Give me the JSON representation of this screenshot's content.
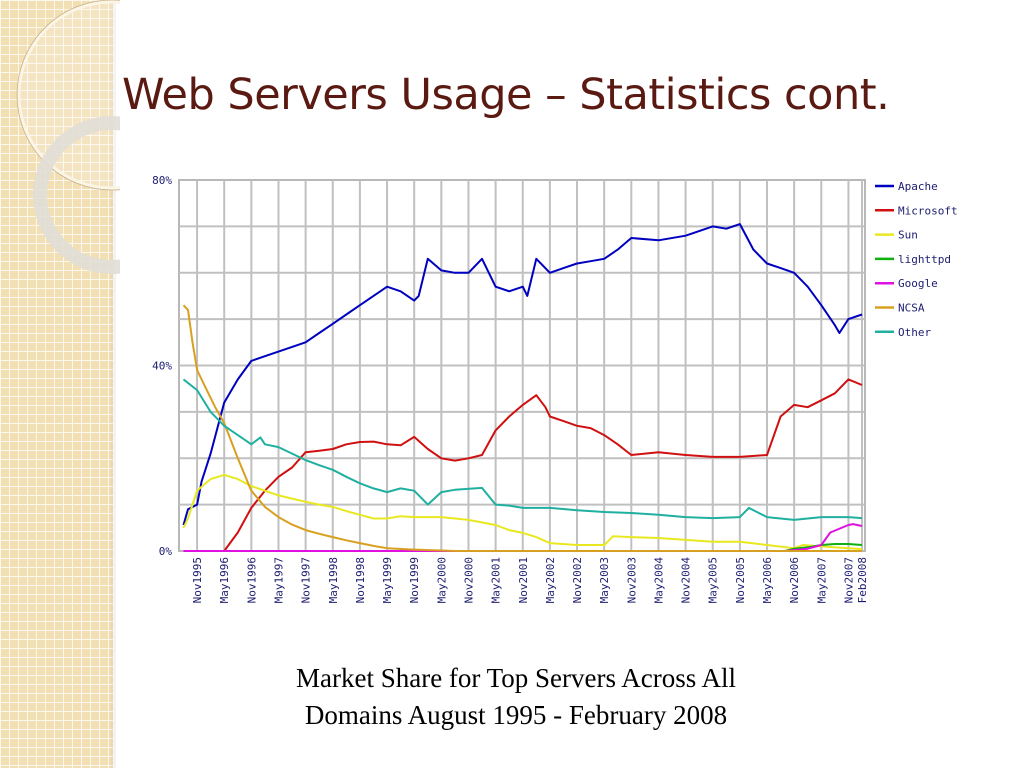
{
  "title": "Web Servers Usage – Statistics cont.",
  "caption": [
    "Market Share for Top Servers Across All",
    "Domains August 1995 - February 2008"
  ],
  "chart_data": {
    "type": "line",
    "title": "Market Share for Top Servers Across All Domains August 1995 - February 2008",
    "xlabel": "",
    "ylabel": "",
    "x_unit": "months since Aug1995",
    "xlim": [
      0,
      150
    ],
    "ylim": [
      0,
      80
    ],
    "yticks": [
      {
        "v": 0,
        "label": "0%"
      },
      {
        "v": 40,
        "label": "40%"
      },
      {
        "v": 80,
        "label": "80%"
      }
    ],
    "xticks": [
      {
        "m": 3,
        "label": "Nov1995"
      },
      {
        "m": 9,
        "label": "May1996"
      },
      {
        "m": 15,
        "label": "Nov1996"
      },
      {
        "m": 21,
        "label": "May1997"
      },
      {
        "m": 27,
        "label": "Nov1997"
      },
      {
        "m": 33,
        "label": "May1998"
      },
      {
        "m": 39,
        "label": "Nov1998"
      },
      {
        "m": 45,
        "label": "May1999"
      },
      {
        "m": 51,
        "label": "Nov1999"
      },
      {
        "m": 57,
        "label": "May2000"
      },
      {
        "m": 63,
        "label": "Nov2000"
      },
      {
        "m": 69,
        "label": "May2001"
      },
      {
        "m": 75,
        "label": "Nov2001"
      },
      {
        "m": 81,
        "label": "May2002"
      },
      {
        "m": 87,
        "label": "Nov2002"
      },
      {
        "m": 93,
        "label": "May2003"
      },
      {
        "m": 99,
        "label": "Nov2003"
      },
      {
        "m": 105,
        "label": "May2004"
      },
      {
        "m": 111,
        "label": "Nov2004"
      },
      {
        "m": 117,
        "label": "May2005"
      },
      {
        "m": 123,
        "label": "Nov2005"
      },
      {
        "m": 129,
        "label": "May2006"
      },
      {
        "m": 135,
        "label": "Nov2006"
      },
      {
        "m": 141,
        "label": "May2007"
      },
      {
        "m": 147,
        "label": "Nov2007"
      },
      {
        "m": 150,
        "label": "Feb2008"
      }
    ],
    "grid": true,
    "legend_position": "right",
    "series": [
      {
        "name": "Apache",
        "color": "#0000c0",
        "points": [
          [
            0,
            5.6
          ],
          [
            1,
            9
          ],
          [
            3,
            10
          ],
          [
            4,
            15
          ],
          [
            6,
            21
          ],
          [
            9,
            32
          ],
          [
            12,
            37
          ],
          [
            15,
            41
          ],
          [
            18,
            42
          ],
          [
            21,
            43
          ],
          [
            24,
            44
          ],
          [
            27,
            45
          ],
          [
            30,
            47
          ],
          [
            33,
            49
          ],
          [
            36,
            51
          ],
          [
            39,
            53
          ],
          [
            42,
            55
          ],
          [
            45,
            57
          ],
          [
            48,
            56
          ],
          [
            51,
            54
          ],
          [
            52,
            55
          ],
          [
            54,
            63
          ],
          [
            57,
            60.5
          ],
          [
            60,
            60
          ],
          [
            63,
            60
          ],
          [
            66,
            63
          ],
          [
            69,
            57
          ],
          [
            72,
            56
          ],
          [
            75,
            57
          ],
          [
            76,
            55
          ],
          [
            78,
            63
          ],
          [
            81,
            60
          ],
          [
            84,
            61
          ],
          [
            87,
            62
          ],
          [
            90,
            62.5
          ],
          [
            93,
            63
          ],
          [
            96,
            65
          ],
          [
            99,
            67.5
          ],
          [
            105,
            67
          ],
          [
            111,
            68
          ],
          [
            117,
            70
          ],
          [
            120,
            69.5
          ],
          [
            123,
            70.5
          ],
          [
            126,
            65
          ],
          [
            129,
            62
          ],
          [
            132,
            61
          ],
          [
            135,
            60
          ],
          [
            138,
            57
          ],
          [
            141,
            53
          ],
          [
            144,
            48.7
          ],
          [
            145,
            47
          ],
          [
            147,
            50
          ],
          [
            150,
            51
          ]
        ]
      },
      {
        "name": "Microsoft",
        "color": "#d01010",
        "points": [
          [
            0,
            0
          ],
          [
            9,
            0
          ],
          [
            12,
            4
          ],
          [
            15,
            9.3
          ],
          [
            18,
            13
          ],
          [
            21,
            16
          ],
          [
            24,
            18
          ],
          [
            27,
            21.3
          ],
          [
            30,
            21.6
          ],
          [
            33,
            22
          ],
          [
            36,
            23
          ],
          [
            39,
            23.5
          ],
          [
            42,
            23.6
          ],
          [
            45,
            23
          ],
          [
            48,
            22.8
          ],
          [
            51,
            24.6
          ],
          [
            54,
            22
          ],
          [
            57,
            20
          ],
          [
            60,
            19.5
          ],
          [
            63,
            20
          ],
          [
            66,
            20.7
          ],
          [
            69,
            26
          ],
          [
            72,
            29
          ],
          [
            75,
            31.5
          ],
          [
            78,
            33.6
          ],
          [
            80,
            31
          ],
          [
            81,
            29
          ],
          [
            84,
            28
          ],
          [
            87,
            27
          ],
          [
            90,
            26.5
          ],
          [
            93,
            25
          ],
          [
            96,
            23
          ],
          [
            99,
            20.7
          ],
          [
            105,
            21.3
          ],
          [
            111,
            20.7
          ],
          [
            117,
            20.3
          ],
          [
            123,
            20.3
          ],
          [
            129,
            20.7
          ],
          [
            132,
            29
          ],
          [
            135,
            31.5
          ],
          [
            138,
            31
          ],
          [
            141,
            32.5
          ],
          [
            144,
            34
          ],
          [
            147,
            37
          ],
          [
            150,
            35.8
          ]
        ]
      },
      {
        "name": "Sun",
        "color": "#e8e820",
        "points": [
          [
            0,
            5
          ],
          [
            1,
            7
          ],
          [
            3,
            13
          ],
          [
            6,
            15.5
          ],
          [
            9,
            16.4
          ],
          [
            12,
            15.5
          ],
          [
            15,
            14
          ],
          [
            18,
            13
          ],
          [
            21,
            12
          ],
          [
            24,
            11.3
          ],
          [
            27,
            10.6
          ],
          [
            30,
            10
          ],
          [
            33,
            9.5
          ],
          [
            36,
            8.6
          ],
          [
            39,
            7.8
          ],
          [
            42,
            7
          ],
          [
            45,
            7
          ],
          [
            48,
            7.5
          ],
          [
            51,
            7.3
          ],
          [
            57,
            7.3
          ],
          [
            63,
            6.7
          ],
          [
            69,
            5.6
          ],
          [
            72,
            4.5
          ],
          [
            75,
            3.9
          ],
          [
            78,
            3
          ],
          [
            81,
            1.7
          ],
          [
            87,
            1.3
          ],
          [
            93,
            1.3
          ],
          [
            95,
            3.2
          ],
          [
            99,
            3
          ],
          [
            105,
            2.8
          ],
          [
            111,
            2.4
          ],
          [
            117,
            2
          ],
          [
            123,
            2
          ],
          [
            129,
            1.3
          ],
          [
            135,
            0.6
          ],
          [
            137,
            1.3
          ],
          [
            141,
            1
          ],
          [
            147,
            0.6
          ],
          [
            150,
            0.4
          ]
        ]
      },
      {
        "name": "lighttpd",
        "color": "#10b010",
        "points": [
          [
            0,
            0
          ],
          [
            133,
            0
          ],
          [
            135,
            0.5
          ],
          [
            138,
            0.8
          ],
          [
            141,
            1.3
          ],
          [
            144,
            1.5
          ],
          [
            147,
            1.5
          ],
          [
            150,
            1.3
          ]
        ]
      },
      {
        "name": "Google",
        "color": "#e010e0",
        "points": [
          [
            0,
            0
          ],
          [
            133,
            0
          ],
          [
            138,
            0.5
          ],
          [
            141,
            1.3
          ],
          [
            143,
            4
          ],
          [
            147,
            5.6
          ],
          [
            148,
            5.8
          ],
          [
            150,
            5.4
          ]
        ]
      },
      {
        "name": "NCSA",
        "color": "#d8a020",
        "points": [
          [
            0,
            53
          ],
          [
            1,
            52
          ],
          [
            2,
            45
          ],
          [
            3,
            39
          ],
          [
            5,
            35
          ],
          [
            7,
            31
          ],
          [
            9,
            27.6
          ],
          [
            12,
            20
          ],
          [
            15,
            13
          ],
          [
            18,
            9.5
          ],
          [
            21,
            7.3
          ],
          [
            24,
            5.7
          ],
          [
            27,
            4.5
          ],
          [
            30,
            3.7
          ],
          [
            33,
            3
          ],
          [
            36,
            2.3
          ],
          [
            39,
            1.7
          ],
          [
            42,
            1.1
          ],
          [
            45,
            0.6
          ],
          [
            51,
            0.3
          ],
          [
            57,
            0.1
          ],
          [
            60,
            0
          ],
          [
            150,
            0
          ]
        ]
      },
      {
        "name": "Other",
        "color": "#20b0a0",
        "points": [
          [
            0,
            37
          ],
          [
            3,
            34.7
          ],
          [
            6,
            30
          ],
          [
            9,
            27
          ],
          [
            12,
            25
          ],
          [
            15,
            23
          ],
          [
            17,
            24.5
          ],
          [
            18,
            23
          ],
          [
            21,
            22.4
          ],
          [
            24,
            21
          ],
          [
            27,
            19.6
          ],
          [
            30,
            18.5
          ],
          [
            33,
            17.5
          ],
          [
            36,
            16
          ],
          [
            39,
            14.6
          ],
          [
            42,
            13.5
          ],
          [
            45,
            12.7
          ],
          [
            48,
            13.5
          ],
          [
            51,
            13
          ],
          [
            54,
            10
          ],
          [
            57,
            12.7
          ],
          [
            60,
            13.2
          ],
          [
            66,
            13.6
          ],
          [
            69,
            10
          ],
          [
            72,
            9.8
          ],
          [
            75,
            9.3
          ],
          [
            81,
            9.3
          ],
          [
            87,
            8.8
          ],
          [
            93,
            8.4
          ],
          [
            99,
            8.2
          ],
          [
            105,
            7.8
          ],
          [
            111,
            7.3
          ],
          [
            117,
            7.1
          ],
          [
            123,
            7.3
          ],
          [
            125,
            9.3
          ],
          [
            129,
            7.3
          ],
          [
            135,
            6.7
          ],
          [
            141,
            7.3
          ],
          [
            147,
            7.3
          ],
          [
            150,
            7.1
          ]
        ]
      }
    ]
  }
}
